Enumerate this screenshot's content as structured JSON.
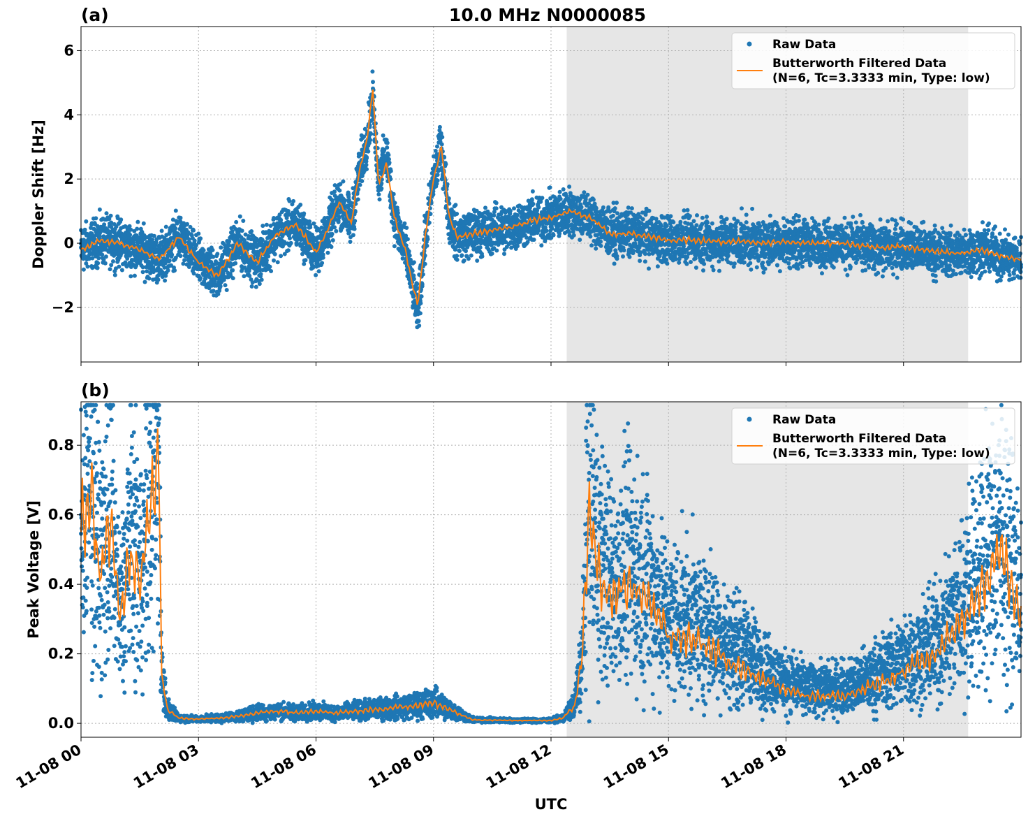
{
  "title": "10.0 MHz N0000085",
  "xlabel": "UTC",
  "x_ticks": [
    "11-08 00",
    "11-08 03",
    "11-08 06",
    "11-08 09",
    "11-08 12",
    "11-08 15",
    "11-08 18",
    "11-08 21"
  ],
  "legend": {
    "raw": "Raw Data",
    "filtered_line1": "Butterworth Filtered Data",
    "filtered_line2": "(N=6, Tc=3.3333 min, Type: low)"
  },
  "colors": {
    "raw": "#1f77b4",
    "filtered": "#ff7f0e",
    "shade": "#e6e6e6"
  },
  "chart_data": [
    {
      "type": "scatter",
      "panel_label": "(a)",
      "ylabel": "Doppler Shift [Hz]",
      "x_unit": "hours UTC since 11-08 00",
      "xlim": [
        0,
        24
      ],
      "ylim": [
        -3.7,
        6.75
      ],
      "yticks": [
        "−2",
        "0",
        "2",
        "4",
        "6"
      ],
      "ytick_values": [
        -2,
        0,
        2,
        4,
        6
      ],
      "shaded_region": [
        12.4,
        22.65
      ],
      "grid": true,
      "legend_position": "top-right",
      "series": [
        {
          "name": "Raw Data",
          "kind": "scatter",
          "x": [
            0.0,
            0.5,
            1.0,
            1.5,
            2.0,
            2.5,
            3.0,
            3.5,
            4.0,
            4.5,
            5.0,
            5.5,
            6.0,
            6.3,
            6.6,
            6.9,
            7.1,
            7.3,
            7.45,
            7.6,
            7.8,
            8.0,
            8.3,
            8.5,
            8.6,
            8.8,
            9.0,
            9.2,
            9.4,
            9.6,
            10.0,
            10.5,
            11.0,
            11.5,
            12.0,
            12.5,
            13.0,
            13.5,
            14.0,
            14.5,
            15.0,
            15.5,
            16.0,
            16.5,
            17.0,
            17.5,
            18.0,
            18.5,
            19.0,
            19.5,
            20.0,
            20.5,
            21.0,
            21.5,
            22.0,
            22.5,
            23.0,
            23.5,
            24.0
          ],
          "y": [
            -0.2,
            0.1,
            0.0,
            -0.2,
            -0.5,
            0.2,
            -0.6,
            -1.0,
            0.0,
            -0.6,
            0.3,
            0.6,
            -0.3,
            0.4,
            1.3,
            0.6,
            2.2,
            3.2,
            4.5,
            2.0,
            2.8,
            0.8,
            -0.3,
            -1.5,
            -2.2,
            0.3,
            2.0,
            3.0,
            0.8,
            0.2,
            0.3,
            0.4,
            0.5,
            0.7,
            0.8,
            1.0,
            0.8,
            0.3,
            0.3,
            0.2,
            0.1,
            0.1,
            0.05,
            0.05,
            0.05,
            0.0,
            0.05,
            0.0,
            0.0,
            0.0,
            -0.1,
            -0.15,
            -0.1,
            -0.2,
            -0.3,
            -0.3,
            -0.2,
            -0.4,
            -0.5
          ]
        },
        {
          "name": "Butterworth Filtered Data (N=6, Tc=3.3333 min, Type: low)",
          "kind": "line",
          "x": [
            0.0,
            0.5,
            1.0,
            1.5,
            2.0,
            2.5,
            3.0,
            3.5,
            4.0,
            4.5,
            5.0,
            5.5,
            6.0,
            6.3,
            6.6,
            6.9,
            7.1,
            7.3,
            7.45,
            7.6,
            7.8,
            8.0,
            8.3,
            8.5,
            8.6,
            8.8,
            9.0,
            9.2,
            9.4,
            9.6,
            10.0,
            10.5,
            11.0,
            11.5,
            12.0,
            12.5,
            13.0,
            13.5,
            14.0,
            14.5,
            15.0,
            15.5,
            16.0,
            16.5,
            17.0,
            17.5,
            18.0,
            18.5,
            19.0,
            19.5,
            20.0,
            20.5,
            21.0,
            21.5,
            22.0,
            22.5,
            23.0,
            23.5,
            24.0
          ],
          "y": [
            -0.2,
            0.1,
            0.0,
            -0.2,
            -0.5,
            0.2,
            -0.6,
            -1.0,
            0.0,
            -0.6,
            0.3,
            0.6,
            -0.3,
            0.4,
            1.3,
            0.6,
            2.2,
            3.2,
            4.8,
            1.8,
            2.5,
            0.8,
            -0.3,
            -1.5,
            -1.9,
            0.3,
            2.0,
            3.0,
            0.8,
            0.2,
            0.3,
            0.4,
            0.5,
            0.7,
            0.8,
            1.0,
            0.8,
            0.3,
            0.3,
            0.2,
            0.1,
            0.1,
            0.05,
            0.05,
            0.05,
            0.0,
            0.05,
            0.0,
            0.0,
            0.0,
            -0.1,
            -0.15,
            -0.1,
            -0.2,
            -0.3,
            -0.3,
            -0.2,
            -0.4,
            -0.5
          ]
        }
      ]
    },
    {
      "type": "scatter",
      "panel_label": "(b)",
      "ylabel": "Peak Voltage [V]",
      "x_unit": "hours UTC since 11-08 00",
      "xlim": [
        0,
        24
      ],
      "ylim": [
        -0.04,
        0.925
      ],
      "yticks": [
        "0.0",
        "0.2",
        "0.4",
        "0.6",
        "0.8"
      ],
      "ytick_values": [
        0.0,
        0.2,
        0.4,
        0.6,
        0.8
      ],
      "shaded_region": [
        12.4,
        22.65
      ],
      "grid": true,
      "legend_position": "top-right",
      "series": [
        {
          "name": "Raw Data",
          "kind": "scatter",
          "x": [
            0.0,
            0.25,
            0.5,
            0.75,
            1.0,
            1.25,
            1.5,
            1.75,
            2.0,
            2.05,
            2.2,
            2.5,
            3.0,
            3.5,
            4.0,
            4.5,
            5.0,
            5.5,
            6.0,
            6.5,
            7.0,
            7.5,
            8.0,
            8.5,
            9.0,
            9.5,
            10.0,
            11.0,
            12.0,
            12.3,
            12.6,
            12.8,
            12.95,
            13.2,
            13.5,
            14.0,
            14.5,
            15.0,
            15.5,
            16.0,
            16.5,
            17.0,
            17.5,
            18.0,
            18.5,
            19.0,
            19.5,
            20.0,
            20.5,
            21.0,
            21.5,
            22.0,
            22.5,
            23.0,
            23.5,
            24.0
          ],
          "y": [
            0.55,
            0.7,
            0.45,
            0.6,
            0.3,
            0.55,
            0.45,
            0.6,
            0.8,
            0.15,
            0.04,
            0.015,
            0.012,
            0.015,
            0.02,
            0.03,
            0.035,
            0.03,
            0.035,
            0.03,
            0.035,
            0.04,
            0.045,
            0.05,
            0.06,
            0.035,
            0.01,
            0.008,
            0.008,
            0.015,
            0.05,
            0.2,
            0.65,
            0.5,
            0.4,
            0.45,
            0.4,
            0.3,
            0.3,
            0.28,
            0.22,
            0.2,
            0.15,
            0.12,
            0.1,
            0.1,
            0.1,
            0.12,
            0.15,
            0.18,
            0.2,
            0.25,
            0.35,
            0.45,
            0.55,
            0.35
          ]
        },
        {
          "name": "Butterworth Filtered Data (N=6, Tc=3.3333 min, Type: low)",
          "kind": "line",
          "x": [
            0.0,
            0.25,
            0.5,
            0.75,
            1.0,
            1.25,
            1.5,
            1.75,
            2.0,
            2.05,
            2.2,
            2.5,
            3.0,
            3.5,
            4.0,
            4.5,
            5.0,
            5.5,
            6.0,
            6.5,
            7.0,
            7.5,
            8.0,
            8.5,
            9.0,
            9.5,
            10.0,
            11.0,
            12.0,
            12.3,
            12.6,
            12.8,
            12.95,
            13.2,
            13.5,
            14.0,
            14.5,
            15.0,
            15.5,
            16.0,
            16.5,
            17.0,
            17.5,
            18.0,
            18.5,
            19.0,
            19.5,
            20.0,
            20.5,
            21.0,
            21.5,
            22.0,
            22.5,
            23.0,
            23.5,
            24.0
          ],
          "y": [
            0.55,
            0.7,
            0.4,
            0.6,
            0.3,
            0.5,
            0.4,
            0.6,
            0.8,
            0.15,
            0.04,
            0.015,
            0.012,
            0.015,
            0.02,
            0.03,
            0.035,
            0.03,
            0.035,
            0.03,
            0.035,
            0.04,
            0.045,
            0.05,
            0.06,
            0.035,
            0.01,
            0.008,
            0.008,
            0.015,
            0.05,
            0.2,
            0.6,
            0.45,
            0.35,
            0.4,
            0.35,
            0.25,
            0.25,
            0.22,
            0.18,
            0.15,
            0.12,
            0.1,
            0.08,
            0.08,
            0.08,
            0.1,
            0.12,
            0.15,
            0.18,
            0.22,
            0.3,
            0.4,
            0.5,
            0.3
          ]
        }
      ]
    }
  ]
}
